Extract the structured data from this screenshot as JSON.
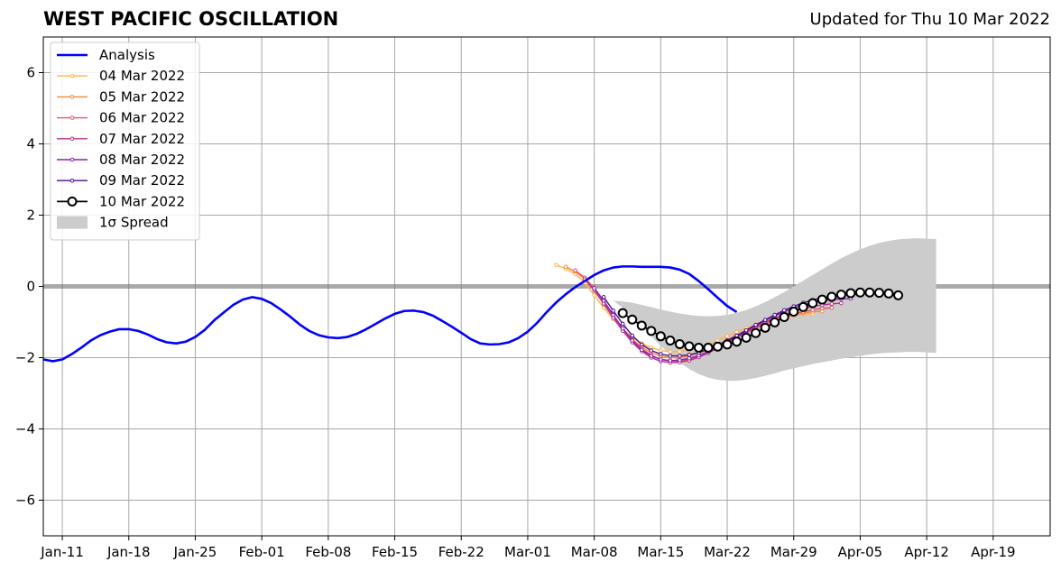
{
  "chart_data": {
    "type": "line",
    "title": "WEST PACIFIC OSCILLATION",
    "subtitle": "Updated for Thu 10 Mar 2022",
    "x_start_date": "2022-01-09",
    "xlim_dates": [
      "2022-01-09",
      "2022-04-25"
    ],
    "ylim": [
      -7,
      7
    ],
    "yticks": [
      -6,
      -4,
      -2,
      0,
      2,
      4,
      6
    ],
    "ytick_labels": [
      "−6",
      "−4",
      "−2",
      "0",
      "2",
      "4",
      "6"
    ],
    "xticks": [
      {
        "date": "2022-01-11",
        "label": "Jan-11"
      },
      {
        "date": "2022-01-18",
        "label": "Jan-18"
      },
      {
        "date": "2022-01-25",
        "label": "Jan-25"
      },
      {
        "date": "2022-02-01",
        "label": "Feb-01"
      },
      {
        "date": "2022-02-08",
        "label": "Feb-08"
      },
      {
        "date": "2022-02-15",
        "label": "Feb-15"
      },
      {
        "date": "2022-02-22",
        "label": "Feb-22"
      },
      {
        "date": "2022-03-01",
        "label": "Mar-01"
      },
      {
        "date": "2022-03-08",
        "label": "Mar-08"
      },
      {
        "date": "2022-03-15",
        "label": "Mar-15"
      },
      {
        "date": "2022-03-22",
        "label": "Mar-22"
      },
      {
        "date": "2022-03-29",
        "label": "Mar-29"
      },
      {
        "date": "2022-04-05",
        "label": "Apr-05"
      },
      {
        "date": "2022-04-12",
        "label": "Apr-12"
      },
      {
        "date": "2022-04-19",
        "label": "Apr-19"
      }
    ],
    "grid": true,
    "legend_position": "top-left",
    "analysis": {
      "name": "Analysis",
      "color": "#0000ff",
      "x_start_day": 0,
      "values": [
        -2.05,
        -2.1,
        -2.05,
        -1.9,
        -1.72,
        -1.52,
        -1.37,
        -1.27,
        -1.2,
        -1.2,
        -1.25,
        -1.35,
        -1.48,
        -1.57,
        -1.6,
        -1.55,
        -1.42,
        -1.22,
        -0.95,
        -0.73,
        -0.52,
        -0.37,
        -0.3,
        -0.35,
        -0.47,
        -0.65,
        -0.85,
        -1.07,
        -1.25,
        -1.37,
        -1.43,
        -1.45,
        -1.42,
        -1.33,
        -1.2,
        -1.05,
        -0.9,
        -0.77,
        -0.69,
        -0.68,
        -0.72,
        -0.82,
        -0.97,
        -1.13,
        -1.3,
        -1.48,
        -1.6,
        -1.63,
        -1.62,
        -1.57,
        -1.45,
        -1.27,
        -1.02,
        -0.72,
        -0.45,
        -0.22,
        -0.02,
        0.15,
        0.32,
        0.45,
        0.53,
        0.56,
        0.56,
        0.55,
        0.55,
        0.55,
        0.53,
        0.47,
        0.35,
        0.15,
        -0.08,
        -0.32,
        -0.55,
        -0.72
      ]
    },
    "forecasts": [
      {
        "name": "04 Mar 2022",
        "color": "#ffb347",
        "x_start_day": 54,
        "values": [
          0.6,
          0.5,
          0.35,
          0.1,
          -0.25,
          -0.6,
          -0.92,
          -1.2,
          -1.42,
          -1.6,
          -1.72,
          -1.8,
          -1.83,
          -1.83,
          -1.8,
          -1.73,
          -1.63,
          -1.52,
          -1.4,
          -1.28,
          -1.17,
          -1.07,
          -0.98,
          -0.92,
          -0.87,
          -0.82,
          -0.78,
          -0.77
        ]
      },
      {
        "name": "05 Mar 2022",
        "color": "#f4893a",
        "x_start_day": 55,
        "values": [
          0.55,
          0.42,
          0.2,
          -0.12,
          -0.5,
          -0.88,
          -1.2,
          -1.48,
          -1.7,
          -1.86,
          -1.96,
          -2.0,
          -2.0,
          -1.95,
          -1.87,
          -1.76,
          -1.63,
          -1.5,
          -1.37,
          -1.24,
          -1.12,
          -1.02,
          -0.93,
          -0.86,
          -0.8,
          -0.75,
          -0.71,
          -0.7
        ]
      },
      {
        "name": "06 Mar 2022",
        "color": "#e5566b",
        "x_start_day": 56,
        "values": [
          0.45,
          0.25,
          -0.05,
          -0.42,
          -0.82,
          -1.18,
          -1.5,
          -1.75,
          -1.93,
          -2.05,
          -2.1,
          -2.1,
          -2.05,
          -1.97,
          -1.86,
          -1.73,
          -1.58,
          -1.44,
          -1.3,
          -1.17,
          -1.05,
          -0.94,
          -0.85,
          -0.77,
          -0.71,
          -0.66,
          -0.62,
          -0.6
        ]
      },
      {
        "name": "07 Mar 2022",
        "color": "#b5338a",
        "x_start_day": 57,
        "values": [
          0.2,
          -0.1,
          -0.48,
          -0.88,
          -1.25,
          -1.57,
          -1.82,
          -2.0,
          -2.1,
          -2.14,
          -2.13,
          -2.08,
          -1.99,
          -1.87,
          -1.73,
          -1.58,
          -1.43,
          -1.28,
          -1.14,
          -1.01,
          -0.89,
          -0.79,
          -0.7,
          -0.62,
          -0.56,
          -0.52,
          -0.49,
          -0.47
        ]
      },
      {
        "name": "08 Mar 2022",
        "color": "#8a1fb0",
        "x_start_day": 58,
        "values": [
          -0.05,
          -0.4,
          -0.8,
          -1.18,
          -1.52,
          -1.78,
          -1.95,
          -2.05,
          -2.08,
          -2.07,
          -2.02,
          -1.94,
          -1.83,
          -1.7,
          -1.55,
          -1.4,
          -1.25,
          -1.1,
          -0.96,
          -0.83,
          -0.71,
          -0.61,
          -0.52,
          -0.45,
          -0.4,
          -0.37,
          -0.35,
          -0.34
        ]
      },
      {
        "name": "09 Mar 2022",
        "color": "#4b0c8c",
        "x_start_day": 59,
        "values": [
          -0.3,
          -0.68,
          -1.05,
          -1.38,
          -1.63,
          -1.8,
          -1.9,
          -1.95,
          -1.95,
          -1.92,
          -1.86,
          -1.77,
          -1.65,
          -1.52,
          -1.38,
          -1.23,
          -1.08,
          -0.94,
          -0.8,
          -0.67,
          -0.56,
          -0.46,
          -0.38,
          -0.32,
          -0.27,
          -0.24,
          -0.22,
          -0.22
        ]
      },
      {
        "name": "10 Mar 2022",
        "color": "#000000",
        "x_start_day": 61,
        "values": [
          -0.75,
          -0.93,
          -1.1,
          -1.25,
          -1.4,
          -1.52,
          -1.62,
          -1.68,
          -1.72,
          -1.72,
          -1.69,
          -1.63,
          -1.55,
          -1.44,
          -1.31,
          -1.16,
          -1.01,
          -0.86,
          -0.71,
          -0.58,
          -0.47,
          -0.37,
          -0.29,
          -0.23,
          -0.19,
          -0.17,
          -0.17,
          -0.18,
          -0.2,
          -0.25
        ]
      }
    ],
    "spread": {
      "name": "1σ Spread",
      "color": "#cccccc",
      "x_start_day": 60,
      "upper": [
        -0.4,
        -0.42,
        -0.46,
        -0.52,
        -0.58,
        -0.65,
        -0.71,
        -0.76,
        -0.8,
        -0.83,
        -0.84,
        -0.83,
        -0.8,
        -0.74,
        -0.66,
        -0.56,
        -0.44,
        -0.3,
        -0.16,
        0.0,
        0.16,
        0.32,
        0.48,
        0.64,
        0.79,
        0.92,
        1.04,
        1.14,
        1.22,
        1.28,
        1.32,
        1.34,
        1.35,
        1.34,
        1.33
      ],
      "lower": [
        -0.4,
        -0.6,
        -0.85,
        -1.12,
        -1.4,
        -1.67,
        -1.92,
        -2.14,
        -2.32,
        -2.46,
        -2.56,
        -2.62,
        -2.65,
        -2.65,
        -2.62,
        -2.57,
        -2.51,
        -2.44,
        -2.36,
        -2.3,
        -2.24,
        -2.18,
        -2.13,
        -2.08,
        -2.03,
        -1.99,
        -1.95,
        -1.91,
        -1.88,
        -1.86,
        -1.85,
        -1.84,
        -1.84,
        -1.85,
        -1.87
      ]
    }
  }
}
